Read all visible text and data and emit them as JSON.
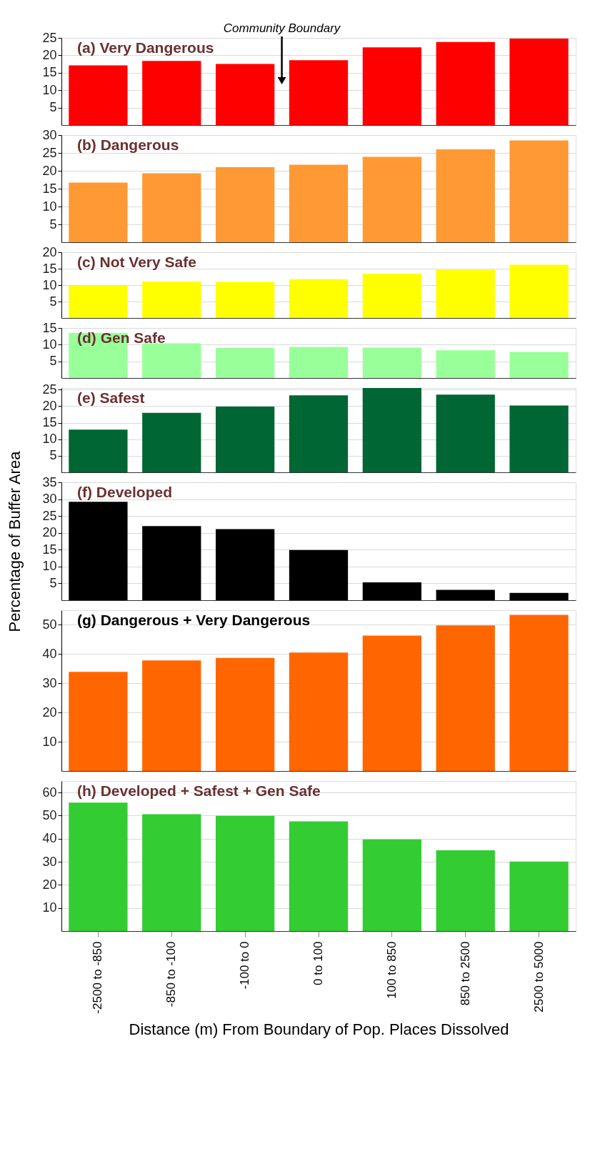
{
  "chart_data": [
    {
      "type": "bar",
      "title": "(a) Very Dangerous",
      "categories": [
        null,
        null,
        null,
        null,
        null,
        null,
        null
      ],
      "values": [
        17.1,
        18.4,
        17.5,
        18.6,
        22.3,
        23.8,
        24.8
      ],
      "color": "#ff0000",
      "ylim": [
        0,
        25
      ],
      "yticks": [
        5,
        10,
        15,
        20,
        25
      ],
      "grid": "y",
      "tick_labels": "y",
      "annotations": [
        "Community Boundary"
      ]
    },
    {
      "type": "bar",
      "title": "(b) Dangerous",
      "categories": [
        null,
        null,
        null,
        null,
        null,
        null,
        null
      ],
      "values": [
        16.7,
        19.3,
        21.0,
        21.7,
        23.9,
        26.0,
        28.5
      ],
      "color": "#ff9933",
      "ylim": [
        0,
        30
      ],
      "yticks": [
        5,
        10,
        15,
        20,
        25,
        30
      ],
      "grid": "y",
      "tick_labels": "y"
    },
    {
      "type": "bar",
      "title": "(c) Not Very Safe",
      "categories": [
        null,
        null,
        null,
        null,
        null,
        null,
        null
      ],
      "values": [
        9.9,
        11.1,
        11.0,
        11.8,
        13.5,
        14.7,
        16.2
      ],
      "color": "#ffff00",
      "ylim": [
        0,
        20
      ],
      "yticks": [
        5,
        10,
        15,
        20
      ],
      "grid": "y",
      "tick_labels": "y"
    },
    {
      "type": "bar",
      "title": "(d) Gen Safe",
      "categories": [
        null,
        null,
        null,
        null,
        null,
        null,
        null
      ],
      "values": [
        13.5,
        10.4,
        9.0,
        9.3,
        9.1,
        8.3,
        7.8
      ],
      "color": "#99ff99",
      "ylim": [
        0,
        15
      ],
      "yticks": [
        5,
        10,
        15
      ],
      "grid": "y",
      "tick_labels": "y"
    },
    {
      "type": "bar",
      "title": "(e) Safest",
      "categories": [
        null,
        null,
        null,
        null,
        null,
        null,
        null
      ],
      "values": [
        12.9,
        18.0,
        19.9,
        23.3,
        25.5,
        23.5,
        20.2
      ],
      "color": "#006633",
      "ylim": [
        0,
        25.5
      ],
      "yticks": [
        5,
        10,
        15,
        20,
        25
      ],
      "grid": "y",
      "tick_labels": "y"
    },
    {
      "type": "bar",
      "title": "(f) Developed",
      "ylabel": "Percentage of Buffer Area",
      "categories": [
        null,
        null,
        null,
        null,
        null,
        null,
        null
      ],
      "values": [
        29.2,
        22.0,
        21.1,
        14.9,
        5.3,
        3.1,
        2.2
      ],
      "color": "#000000",
      "ylim": [
        0,
        35
      ],
      "yticks": [
        5,
        10,
        15,
        20,
        25,
        30,
        35
      ],
      "grid": "y",
      "tick_labels": "y"
    },
    {
      "type": "bar",
      "title": "(g) Dangerous + Very Dangerous",
      "categories": [
        null,
        null,
        null,
        null,
        null,
        null,
        null
      ],
      "values": [
        33.9,
        37.8,
        38.7,
        40.5,
        46.3,
        49.8,
        53.4
      ],
      "color": "#ff6600",
      "ylim": [
        0,
        55
      ],
      "yticks": [
        10,
        20,
        30,
        40,
        50
      ],
      "grid": "y",
      "tick_labels": "y"
    },
    {
      "type": "bar",
      "title": "(h) Developed + Safest + Gen Safe",
      "xlabel": "Distance (m) From Boundary of Pop. Places Dissolved",
      "categories": [
        "-2500 to -850",
        "-850 to -100",
        "-100 to 0",
        "0 to 100",
        "100 to 850",
        "850 to 2500",
        "2500 to 5000"
      ],
      "values": [
        55.6,
        50.6,
        49.9,
        47.5,
        39.7,
        35.0,
        30.1
      ],
      "color": "#33cc33",
      "ylim": [
        0,
        65
      ],
      "yticks": [
        10,
        20,
        30,
        40,
        50,
        60
      ],
      "grid": "y"
    }
  ]
}
